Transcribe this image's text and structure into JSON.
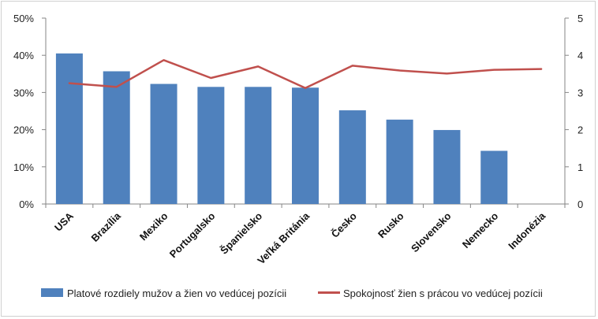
{
  "chart_data": {
    "type": "bar",
    "categories": [
      "USA",
      "Brazília",
      "Mexiko",
      "Portugalsko",
      "Španielsko",
      "Veľká Británia",
      "Česko",
      "Rusko",
      "Slovensko",
      "Nemecko",
      "Indonézia"
    ],
    "series": [
      {
        "name": "Platové rozdiely mužov a žien vo vedúcej pozícii",
        "type": "bar",
        "axis": "left",
        "color": "#4f81bd",
        "values": [
          0.405,
          0.357,
          0.323,
          0.315,
          0.315,
          0.313,
          0.252,
          0.227,
          0.199,
          0.143,
          null
        ]
      },
      {
        "name": "Spokojnosť žien s prácou vo vedúcej pozícii",
        "type": "line",
        "axis": "right",
        "color": "#c0504d",
        "values": [
          3.25,
          3.15,
          3.87,
          3.39,
          3.7,
          3.12,
          3.72,
          3.59,
          3.51,
          3.61,
          3.63
        ]
      }
    ],
    "y_left": {
      "ylim": [
        0,
        0.5
      ],
      "ticks": [
        "0%",
        "10%",
        "20%",
        "30%",
        "40%",
        "50%"
      ]
    },
    "y_right": {
      "ylim": [
        0,
        5
      ],
      "ticks": [
        "0",
        "1",
        "2",
        "3",
        "4",
        "5"
      ]
    },
    "title": "",
    "xlabel": "",
    "legend_position": "bottom",
    "grid": false
  }
}
